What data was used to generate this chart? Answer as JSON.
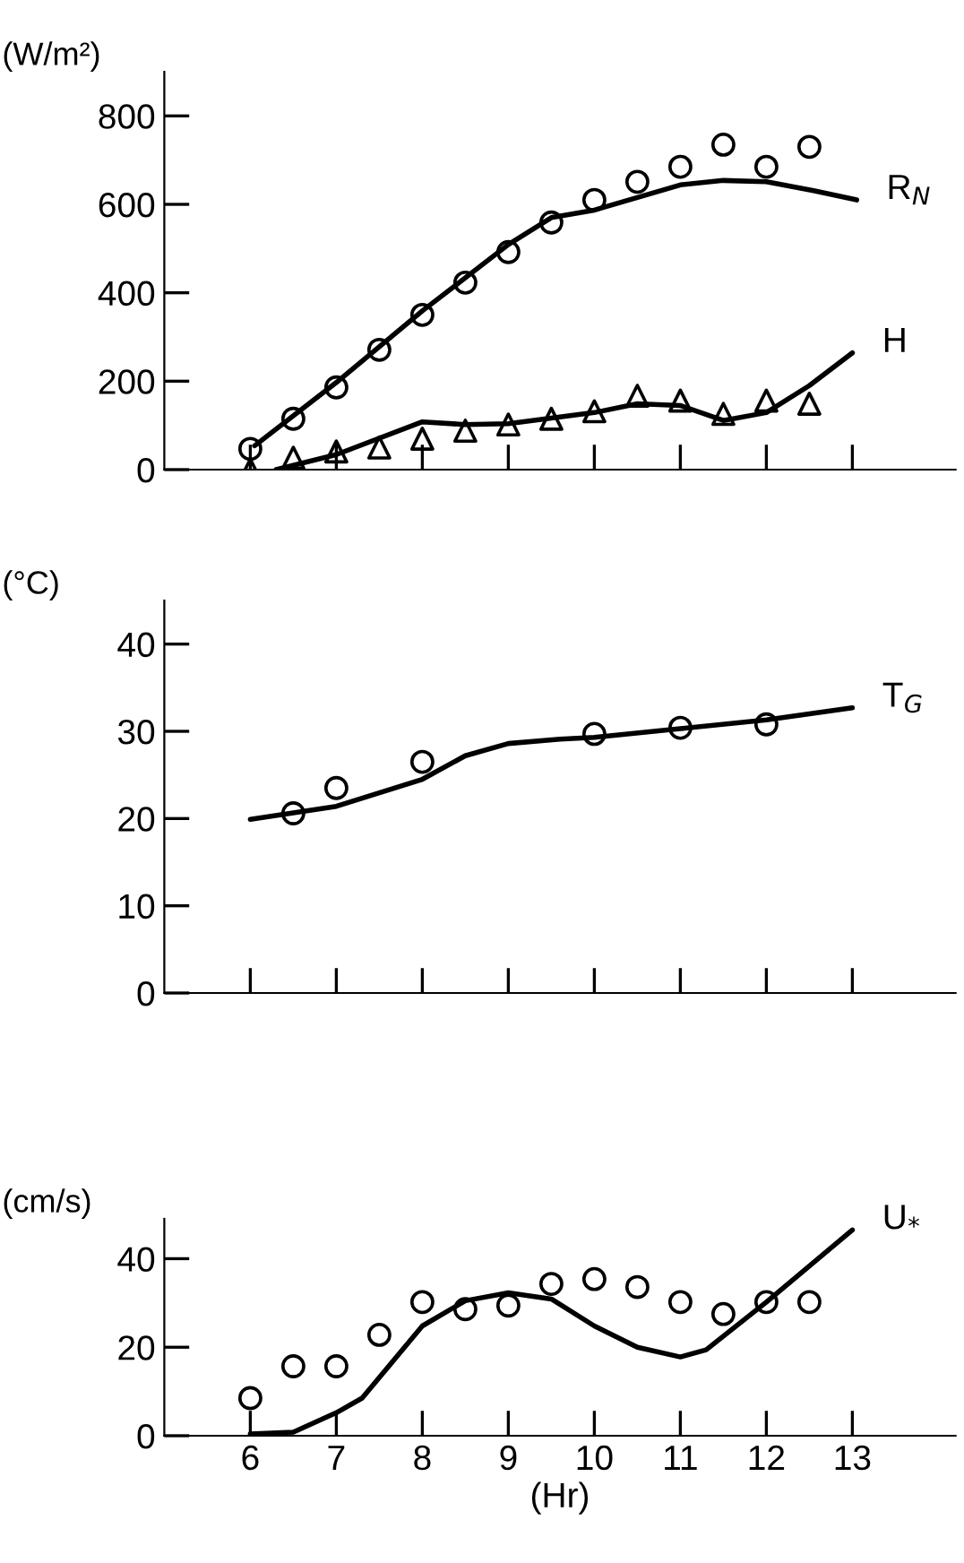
{
  "chart_data": [
    {
      "type": "line",
      "ylabel": "(W/m²)",
      "xlim": [
        5,
        14.2
      ],
      "xticks": [
        6,
        7,
        8,
        9,
        10,
        11,
        12,
        13
      ],
      "ylim": [
        0,
        900
      ],
      "yticks": [
        0,
        200,
        400,
        600,
        800
      ],
      "tick_labels": "y",
      "grid": false,
      "legend": false,
      "series": [
        {
          "name": "R$_{N}$",
          "color": "#000000",
          "x": [
            6.05,
            7,
            8,
            9,
            9.5,
            10,
            11,
            11.5,
            12,
            12.55,
            13.05
          ],
          "values": [
            54,
            197,
            359,
            509,
            570,
            587,
            644,
            654,
            651,
            631,
            610
          ]
        },
        {
          "type": "scatter",
          "marker": "circle",
          "color": "#000000",
          "x": [
            6,
            6.5,
            7,
            7.5,
            8,
            8.5,
            9,
            9.5,
            10,
            10.5,
            11,
            11.5,
            12,
            12.5
          ],
          "values": [
            47,
            115,
            186,
            271,
            350,
            423,
            492,
            559,
            610,
            651,
            685,
            735,
            685,
            730
          ]
        },
        {
          "name": "H",
          "color": "#000000",
          "x": [
            6.3,
            7,
            8,
            8.5,
            9,
            10,
            10.5,
            11,
            11.5,
            12,
            12.5,
            13
          ],
          "values": [
            0,
            34,
            108,
            102,
            104,
            129,
            149,
            145,
            111,
            129,
            190,
            264
          ]
        },
        {
          "type": "scatter",
          "marker": "triangle",
          "color": "#000000",
          "x": [
            6,
            6.5,
            7,
            7.5,
            8,
            8.5,
            9,
            9.5,
            10,
            10.5,
            11,
            11.5,
            12,
            12.5
          ],
          "values": [
            0,
            27,
            41,
            50,
            70,
            88,
            102,
            115,
            132,
            167,
            156,
            126,
            156,
            149
          ]
        }
      ]
    },
    {
      "type": "line",
      "ylabel": "(°C)",
      "xlim": [
        5,
        14.2
      ],
      "xticks": [
        6,
        7,
        8,
        9,
        10,
        11,
        12,
        13
      ],
      "ylim": [
        0,
        45
      ],
      "yticks": [
        0,
        10,
        20,
        30,
        40
      ],
      "tick_labels": "y",
      "grid": false,
      "legend": false,
      "series": [
        {
          "name": "T$_{G}$",
          "color": "#000000",
          "x": [
            6,
            7,
            8,
            8.5,
            9,
            9.6,
            10,
            11,
            12,
            13
          ],
          "values": [
            19.9,
            21.4,
            24.5,
            27.2,
            28.6,
            29.1,
            29.3,
            30.3,
            31.3,
            32.7
          ]
        },
        {
          "type": "scatter",
          "marker": "circle",
          "color": "#000000",
          "x": [
            6.5,
            7,
            8,
            10,
            11,
            12
          ],
          "values": [
            20.6,
            23.5,
            26.5,
            29.7,
            30.4,
            30.8
          ]
        }
      ]
    },
    {
      "type": "line",
      "ylabel": "(cm/s)",
      "xlabel": "(Hr)",
      "xlim": [
        5,
        14.2
      ],
      "xticks": [
        6,
        7,
        8,
        9,
        10,
        11,
        12,
        13
      ],
      "ylim": [
        0,
        49
      ],
      "yticks": [
        0,
        20,
        40
      ],
      "grid": false,
      "legend": false,
      "series": [
        {
          "name": "U$_{*}$",
          "color": "#000000",
          "x": [
            6,
            6.5,
            7,
            7.3,
            8,
            8.5,
            9,
            9.5,
            10,
            10.5,
            11,
            11.3,
            12,
            13
          ],
          "values": [
            0.4,
            0.8,
            5.2,
            8.5,
            24.8,
            30.5,
            32.3,
            30.9,
            24.8,
            20,
            17.8,
            19.4,
            30.2,
            46.5
          ]
        },
        {
          "type": "scatter",
          "marker": "circle",
          "color": "#000000",
          "x": [
            6,
            6.5,
            7,
            7.5,
            8,
            8.5,
            9,
            9.5,
            10,
            10.5,
            11,
            11.5,
            12,
            12.5
          ],
          "values": [
            8.5,
            15.7,
            15.7,
            22.8,
            30.2,
            28.6,
            29.4,
            34.3,
            35.4,
            33.6,
            30.2,
            27.5,
            30.2,
            30.2
          ]
        }
      ]
    }
  ]
}
